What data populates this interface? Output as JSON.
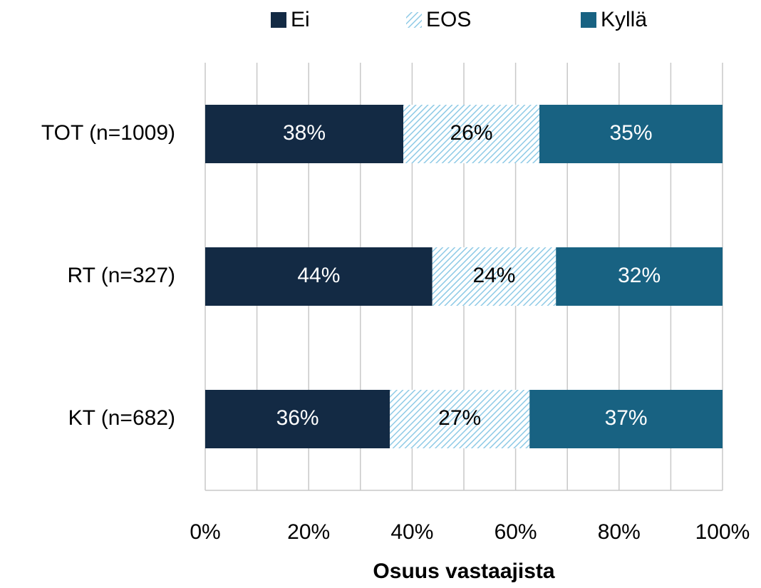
{
  "chart_data": {
    "type": "stacked_barh",
    "categories": [
      "TOT (n=1009)",
      "RT (n=327)",
      "KT (n=682)"
    ],
    "series": [
      {
        "name": "Ei",
        "color": "#132a44",
        "values": [
          38.3,
          43.9,
          35.7
        ],
        "value_labels": [
          "38%",
          "44%",
          "36%"
        ]
      },
      {
        "name": "EOS",
        "color": "#8ecae6",
        "hatch": true,
        "values": [
          26.3,
          23.9,
          27.0
        ],
        "value_labels": [
          "26%",
          "24%",
          "27%"
        ]
      },
      {
        "name": "Kyllä",
        "color": "#186282",
        "values": [
          35.4,
          32.2,
          37.3
        ],
        "value_labels": [
          "35%",
          "32%",
          "37%"
        ]
      }
    ],
    "xlim": [
      0,
      100
    ],
    "xticks": [
      {
        "value": 0,
        "label": "0%"
      },
      {
        "value": 20,
        "label": "20%"
      },
      {
        "value": 40,
        "label": "40%"
      },
      {
        "value": 60,
        "label": "60%"
      },
      {
        "value": 80,
        "label": "80%"
      },
      {
        "value": 100,
        "label": "100%"
      }
    ],
    "minor_xticks": [
      10,
      30,
      50,
      70,
      90
    ],
    "grid": true,
    "legend": "top",
    "xlabel": "Osuus vastaajista"
  }
}
